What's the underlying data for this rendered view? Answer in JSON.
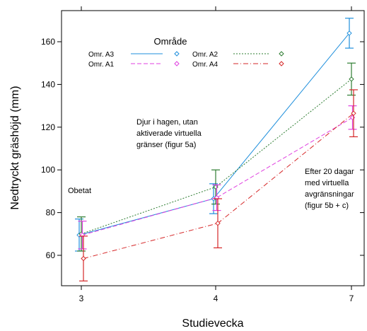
{
  "chart_data": {
    "type": "line",
    "xlabel": "Studievecka",
    "ylabel": "Nedtryckt gräshöjd (mm)",
    "categories": [
      "3",
      "4",
      "7"
    ],
    "ylim": [
      48,
      175
    ],
    "yticks": [
      60,
      80,
      100,
      120,
      140,
      160
    ],
    "grid": false,
    "legend": {
      "title": "Område",
      "placement": "top-left"
    },
    "series": [
      {
        "name": "Omr. A3",
        "color": "#1f8fdc",
        "dash": "solid",
        "values": [
          69.5,
          86.5,
          164
        ],
        "lower": [
          62,
          79.5,
          157
        ],
        "upper": [
          77,
          93.5,
          171
        ]
      },
      {
        "name": "Omr. A2",
        "color": "#2e7d32",
        "dash": "dotted",
        "values": [
          70,
          92,
          142.5
        ],
        "lower": [
          62,
          84,
          135
        ],
        "upper": [
          78,
          100,
          150
        ]
      },
      {
        "name": "Omr. A1",
        "color": "#e040e0",
        "dash": "dashed",
        "values": [
          69.5,
          87,
          124.5
        ],
        "lower": [
          63,
          81,
          119
        ],
        "upper": [
          76,
          93,
          130
        ]
      },
      {
        "name": "Omr. A4",
        "color": "#d62728",
        "dash": "dashdot",
        "values": [
          58.5,
          75,
          126.5
        ],
        "lower": [
          48,
          63.5,
          115.5
        ],
        "upper": [
          69,
          86.5,
          137.5
        ]
      }
    ],
    "annotations": [
      {
        "id": "obetat",
        "lines": [
          "Obetat"
        ]
      },
      {
        "id": "hagen",
        "lines": [
          "Djur i hagen, utan",
          "aktiverade virtuella",
          "gränser (figur  5a)"
        ]
      },
      {
        "id": "efter",
        "lines": [
          "Efter 20 dagar",
          "med virtuella",
          "avgränsningar",
          "(figur 5b + c)"
        ]
      }
    ]
  }
}
